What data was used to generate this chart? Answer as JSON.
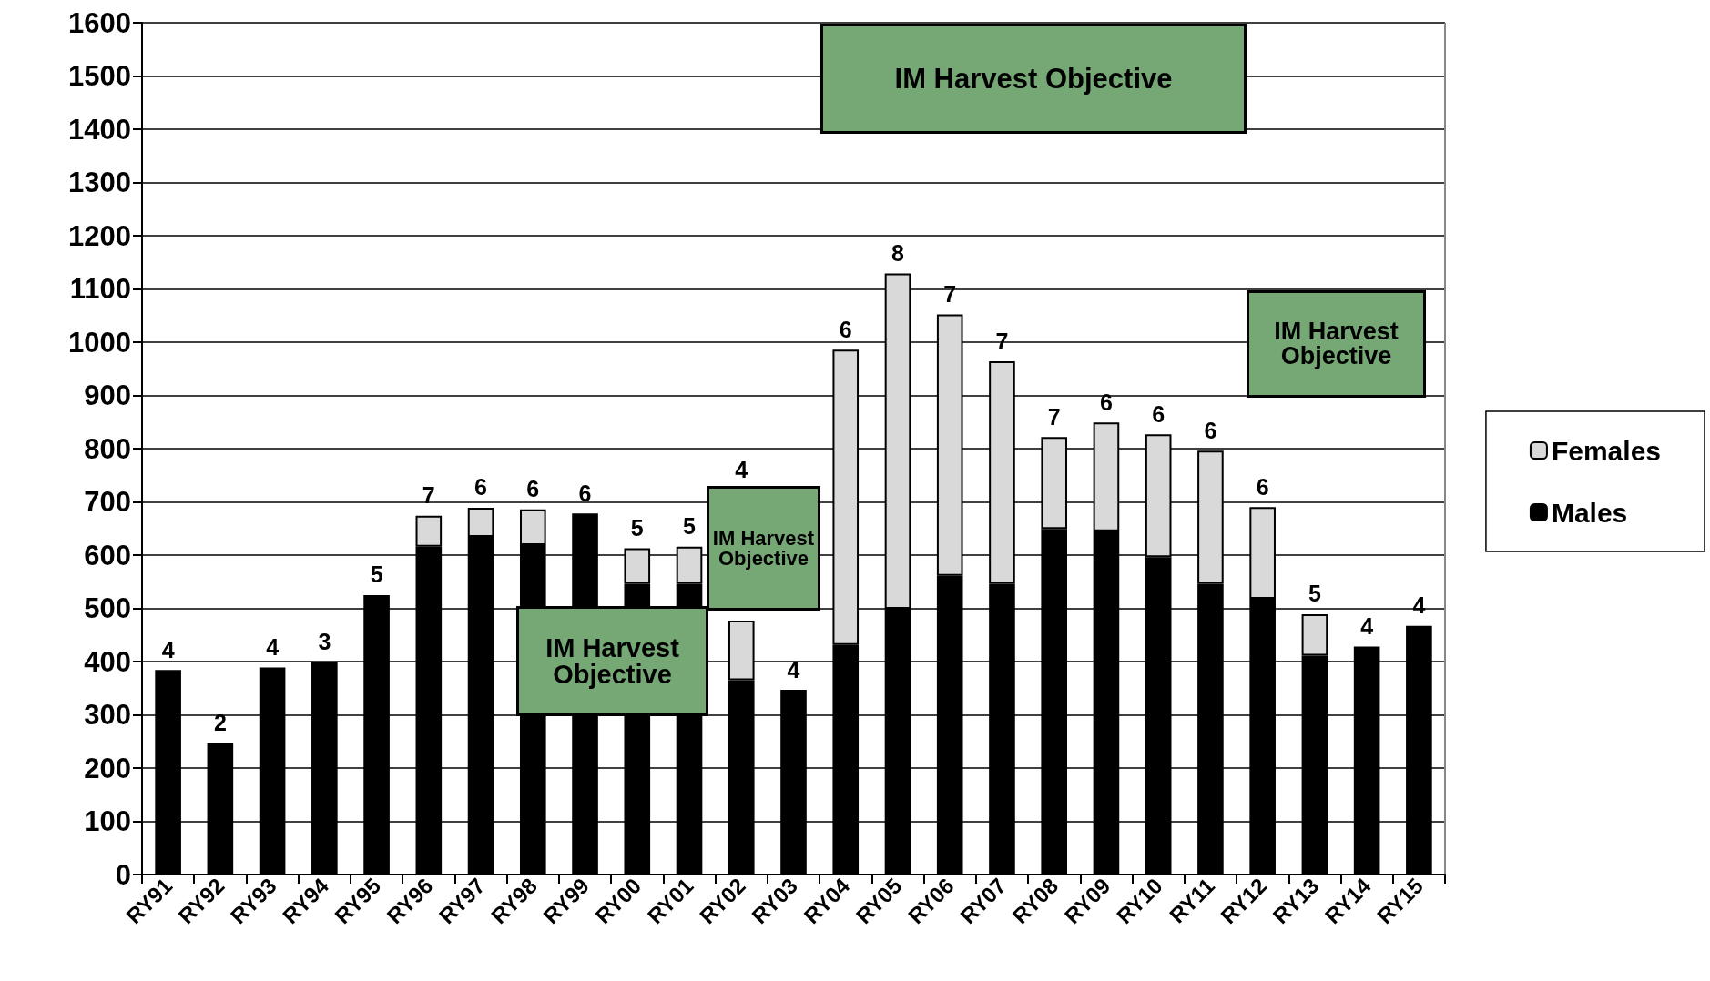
{
  "chart_data": {
    "type": "bar",
    "stacked": true,
    "grid": "y",
    "legend": "right",
    "categories": [
      "RY91",
      "RY92",
      "RY93",
      "RY94",
      "RY95",
      "RY96",
      "RY97",
      "RY98",
      "RY99",
      "RY00",
      "RY01",
      "RY02",
      "RY03",
      "RY04",
      "RY05",
      "RY06",
      "RY07",
      "RY08",
      "RY09",
      "RY10",
      "RY11",
      "RY12",
      "RY13",
      "RY14",
      "RY15"
    ],
    "series": [
      {
        "name": "Males",
        "color": "#000000",
        "values": [
          384,
          247,
          389,
          399,
          525,
          616,
          634,
          619,
          678,
          546,
          546,
          365,
          347,
          431,
          499,
          561,
          546,
          649,
          645,
          596,
          546,
          518,
          411,
          428,
          467
        ]
      },
      {
        "name": "Females",
        "color": "#d9d9d9",
        "values": [
          null,
          null,
          null,
          null,
          null,
          58,
          55,
          67,
          null,
          67,
          70,
          112,
          null,
          555,
          630,
          491,
          418,
          173,
          204,
          231,
          250,
          172,
          78,
          null,
          null
        ]
      }
    ],
    "ylim": [
      0,
      1600
    ],
    "yticks": [
      0,
      100,
      200,
      300,
      400,
      500,
      600,
      700,
      800,
      900,
      1000,
      1100,
      1200,
      1300,
      1400,
      1500,
      1600
    ],
    "annotations": [
      "4",
      "2",
      "4",
      "3",
      "5",
      "7",
      "6",
      "6",
      "6",
      "5",
      "5",
      "4",
      "4",
      "6",
      "8",
      "7",
      "7",
      "7",
      "6",
      "6",
      "6",
      "6",
      "5",
      "4",
      "4",
      "IM Harvest Objective",
      "IM Harvest Objective",
      "IM Harvest Objective",
      "IM Harvest Objective"
    ]
  }
}
